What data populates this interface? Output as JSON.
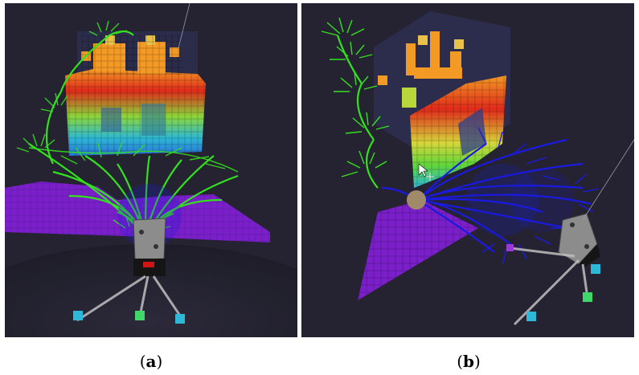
{
  "panels": [
    {
      "id": "a",
      "caption_open": "(",
      "caption_letter": "a",
      "caption_close": ")"
    },
    {
      "id": "b",
      "caption_open": "(",
      "caption_letter": "b",
      "caption_close": ")"
    }
  ],
  "colors": {
    "background": "#252331",
    "floor": "#7a1fc9",
    "trajectories_green": "#33e11f",
    "trajectories_blue": "#1a1ae0",
    "voxel_red": "#e02a1a",
    "voxel_orange": "#f39a24",
    "voxel_green": "#5fd63a",
    "voxel_cyan": "#2cb8d6",
    "robot_body": "#7d7d7d"
  },
  "icons": [
    "cursor-arrow-icon",
    "move-cursor-icon"
  ]
}
